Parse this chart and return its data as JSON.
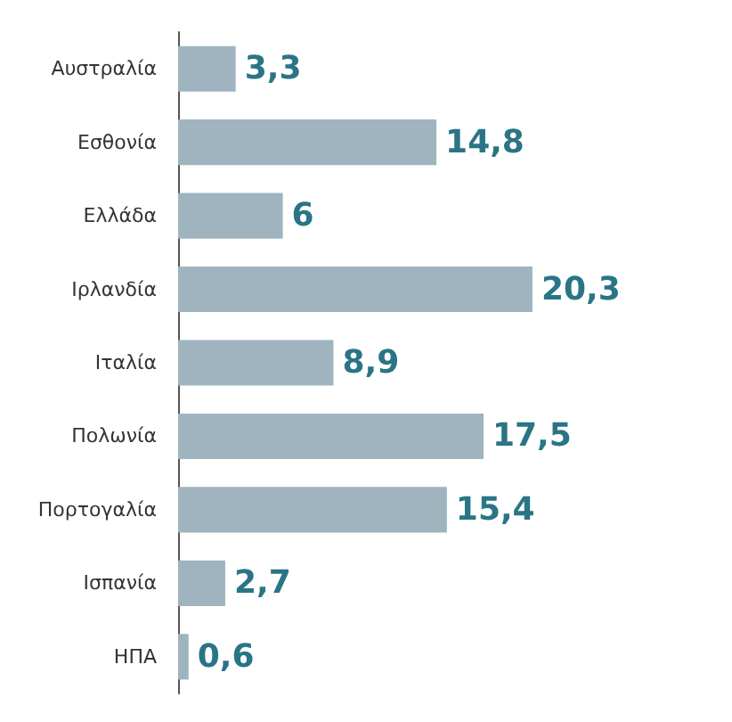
{
  "chart_data": {
    "type": "bar",
    "orientation": "horizontal",
    "categories": [
      "Αυστραλία",
      "Εσθονία",
      "Ελλάδα",
      "Ιρλανδία",
      "Ιταλία",
      "Πολωνία",
      "Πορτογαλία",
      "Ισπανία",
      "ΗΠΑ"
    ],
    "values": [
      3.3,
      14.8,
      6,
      20.3,
      8.9,
      17.5,
      15.4,
      2.7,
      0.6
    ],
    "value_labels": [
      "3,3",
      "14,8",
      "6",
      "20,3",
      "8,9",
      "17,5",
      "15,4",
      "2,7",
      "0,6"
    ],
    "color": "#9fb4bf"
  }
}
